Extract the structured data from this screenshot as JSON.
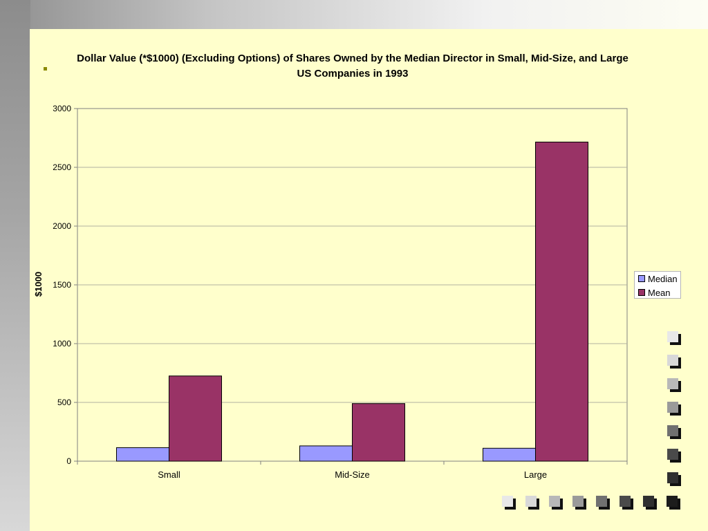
{
  "slide": {
    "bullet": "▪"
  },
  "chart_data": {
    "type": "bar",
    "title": "Dollar Value (*$1000) (Excluding Options) of Shares Owned by the Median Director in Small, Mid-Size, and Large US Companies in 1993",
    "xlabel": "",
    "ylabel": "$1000",
    "categories": [
      "Small",
      "Mid-Size",
      "Large"
    ],
    "series": [
      {
        "name": "Median",
        "values": [
          115,
          130,
          110
        ],
        "color": "#9999ff"
      },
      {
        "name": "Mean",
        "values": [
          725,
          490,
          2715
        ],
        "color": "#993366"
      }
    ],
    "ylim": [
      0,
      3000
    ],
    "yticks": [
      0,
      500,
      1000,
      1500,
      2000,
      2500,
      3000
    ],
    "grid": true,
    "legend_position": "right",
    "plot_background": "#ffffcc"
  },
  "decor": {
    "square_colors": [
      "#e8e8e8",
      "#d8d8d8",
      "#b8b8b8",
      "#9a9a9a",
      "#707070",
      "#4a4a4a",
      "#303030",
      "#1c1c1c"
    ]
  }
}
